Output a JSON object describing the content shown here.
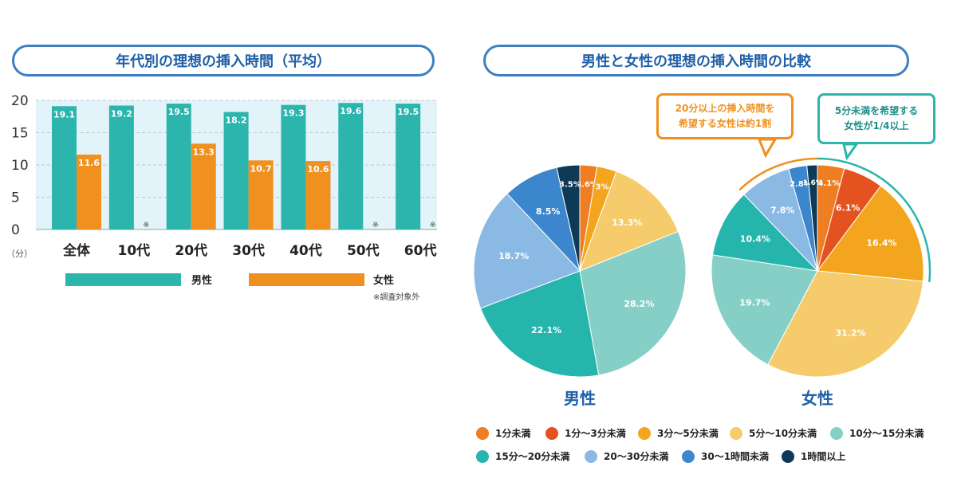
{
  "titles": {
    "left": "年代別の理想の挿入時間（平均）",
    "right": "男性と女性の理想の挿入時間の比較"
  },
  "colors": {
    "male": "#2bb5ad",
    "female": "#f0901e",
    "plot_bg": "#e3f3fa",
    "title_border": "#3f7fc1",
    "title_text": "#1f5fa8"
  },
  "chart_data": [
    {
      "type": "bar",
      "categories": [
        "全体",
        "10代",
        "20代",
        "30代",
        "40代",
        "50代",
        "60代"
      ],
      "series": [
        {
          "name": "男性",
          "values": [
            19.1,
            19.2,
            19.5,
            18.2,
            19.3,
            19.6,
            19.5
          ]
        },
        {
          "name": "女性",
          "values": [
            11.6,
            null,
            13.3,
            10.7,
            10.6,
            null,
            null
          ]
        }
      ],
      "ylim": [
        0,
        20
      ],
      "yticks": [
        "0",
        "5",
        "10",
        "15",
        "20"
      ],
      "ylabel": "（分）",
      "missing_mark": "※",
      "note": "※調査対象外",
      "grid": true,
      "legend_position": "bottom"
    },
    {
      "type": "pie",
      "title": "男性",
      "categories": [
        "1分未満",
        "1分〜3分未満",
        "3分〜5分未満",
        "5分〜10分未満",
        "10分〜15分未満",
        "15分〜20分未満",
        "20〜30分未満",
        "30〜1時間未満",
        "1時間以上"
      ],
      "values": [
        2.6,
        0,
        3.0,
        13.3,
        28.2,
        22.1,
        18.7,
        8.5,
        3.5
      ]
    },
    {
      "type": "pie",
      "title": "女性",
      "categories": [
        "1分未満",
        "1分〜3分未満",
        "3分〜5分未満",
        "5分〜10分未満",
        "10分〜15分未満",
        "15分〜20分未満",
        "20〜30分未満",
        "30〜1時間未満",
        "1時間以上"
      ],
      "values": [
        4.1,
        6.1,
        16.4,
        31.2,
        19.7,
        10.4,
        7.8,
        2.8,
        1.6
      ]
    }
  ],
  "pie_colors": [
    "#ef7d22",
    "#e4521f",
    "#f2a51d",
    "#f6cb6c",
    "#86cfc6",
    "#26b5ad",
    "#8ab9e3",
    "#3b86cc",
    "#0e3a57"
  ],
  "callouts": {
    "left": [
      "20分以上の挿入時間を",
      "希望する女性は約1割"
    ],
    "right": [
      "5分未満を希望する",
      "女性が1/4以上"
    ],
    "left_color": "#f0901e",
    "right_color": "#2bb5ad"
  },
  "pie_labels": {
    "male": "男性",
    "female": "女性"
  },
  "bar_legend": {
    "male": "男性",
    "female": "女性",
    "note": "※調査対象外"
  }
}
